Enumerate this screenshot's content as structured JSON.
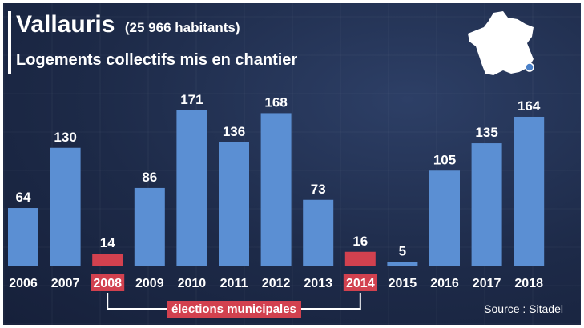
{
  "header": {
    "city": "Vallauris",
    "population": "(25 966 habitants)",
    "subtitle": "Logements collectifs mis en chantier"
  },
  "annotation": {
    "label": "élections municipales"
  },
  "source": "Source : Sitadel",
  "colors": {
    "normal_bar": "#5b8fd3",
    "election_bar": "#d2414f",
    "text": "#ffffff"
  },
  "map": {
    "icon": "france-map-icon",
    "marker": "vallauris-location-marker"
  },
  "chart_data": {
    "type": "bar",
    "title": "Logements collectifs mis en chantier",
    "categories": [
      "2006",
      "2007",
      "2008",
      "2009",
      "2010",
      "2011",
      "2012",
      "2013",
      "2014",
      "2015",
      "2016",
      "2017",
      "2018"
    ],
    "values": [
      64,
      130,
      14,
      86,
      171,
      136,
      168,
      73,
      16,
      5,
      105,
      135,
      164
    ],
    "highlighted_categories": [
      "2008",
      "2014"
    ],
    "ylim": [
      0,
      171
    ],
    "grid": false,
    "legend": "none"
  }
}
